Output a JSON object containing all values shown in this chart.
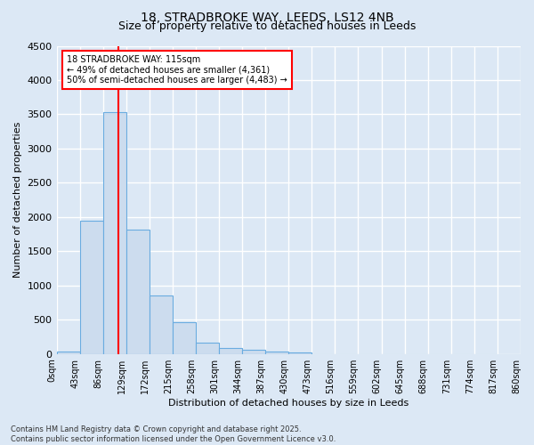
{
  "title1": "18, STRADBROKE WAY, LEEDS, LS12 4NB",
  "title2": "Size of property relative to detached houses in Leeds",
  "xlabel": "Distribution of detached houses by size in Leeds",
  "ylabel": "Number of detached properties",
  "bar_values": [
    30,
    1950,
    3530,
    1810,
    850,
    460,
    160,
    90,
    60,
    40,
    20,
    0,
    0,
    0,
    0,
    0,
    0,
    0,
    0
  ],
  "bin_labels": [
    "0sqm",
    "43sqm",
    "86sqm",
    "129sqm",
    "172sqm",
    "215sqm",
    "258sqm",
    "301sqm",
    "344sqm",
    "387sqm",
    "430sqm",
    "473sqm",
    "516sqm",
    "559sqm",
    "602sqm",
    "645sqm",
    "688sqm",
    "731sqm",
    "774sqm",
    "817sqm",
    "860sqm"
  ],
  "bar_color": "#ccdcee",
  "bar_edge_color": "#6aace0",
  "vline_x": 115,
  "vline_color": "red",
  "annotation_text": "18 STRADBROKE WAY: 115sqm\n← 49% of detached houses are smaller (4,361)\n50% of semi-detached houses are larger (4,483) →",
  "annotation_box_color": "white",
  "annotation_box_edge_color": "red",
  "ylim": [
    0,
    4500
  ],
  "yticks": [
    0,
    500,
    1000,
    1500,
    2000,
    2500,
    3000,
    3500,
    4000,
    4500
  ],
  "bin_edges": [
    0,
    43,
    86,
    129,
    172,
    215,
    258,
    301,
    344,
    387,
    430,
    473,
    516,
    559,
    602,
    645,
    688,
    731,
    774,
    817,
    860
  ],
  "footer": "Contains HM Land Registry data © Crown copyright and database right 2025.\nContains public sector information licensed under the Open Government Licence v3.0.",
  "bg_color": "#dce8f5",
  "plot_bg_color": "#dce8f5",
  "grid_color": "white",
  "title_fontsize": 10,
  "subtitle_fontsize": 9,
  "ylabel_fontsize": 8,
  "xlabel_fontsize": 8,
  "tick_fontsize": 7,
  "annotation_fontsize": 7,
  "footer_fontsize": 6
}
